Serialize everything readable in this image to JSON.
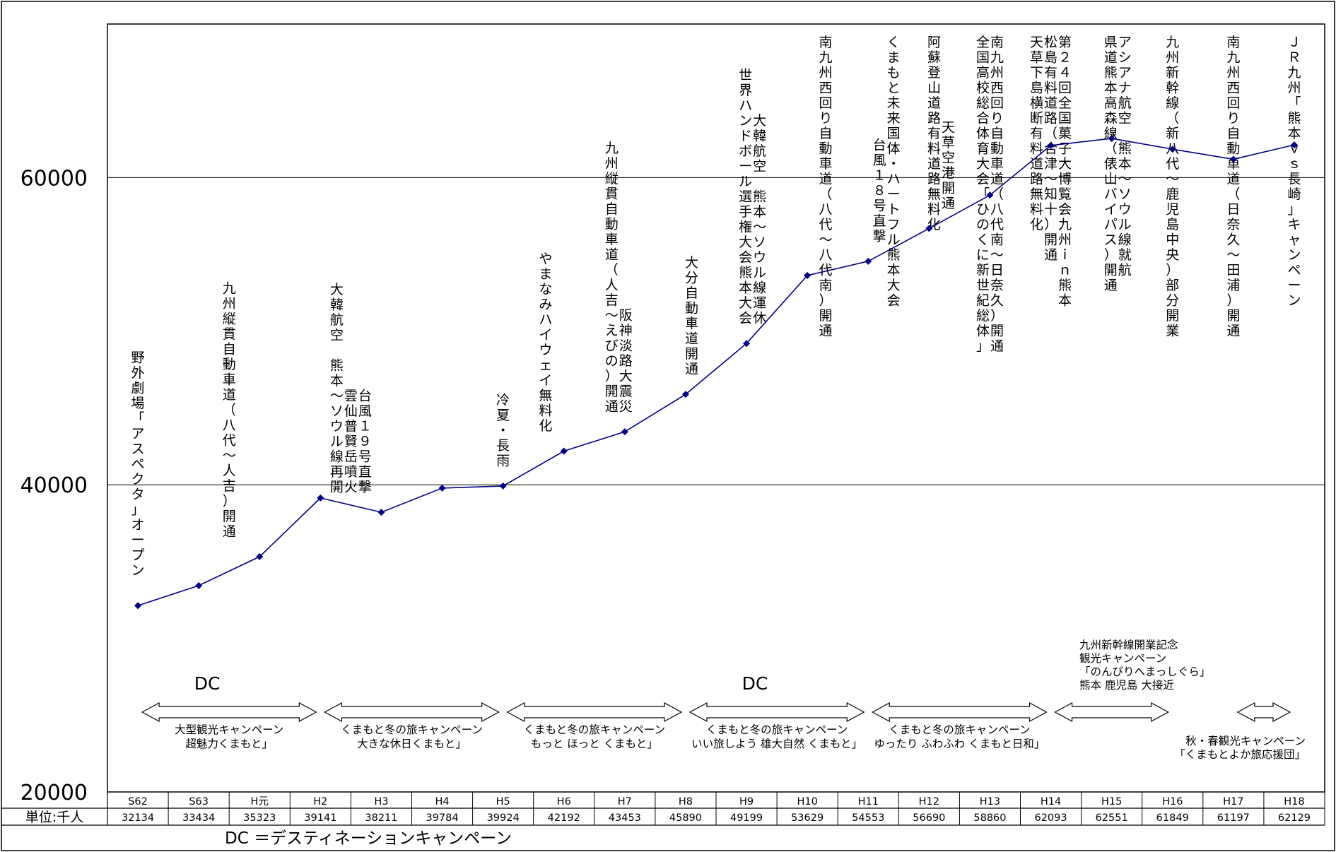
{
  "chart_data": {
    "type": "line",
    "unit_label": "単位:千人",
    "categories": [
      "S62",
      "S63",
      "H元",
      "H2",
      "H3",
      "H4",
      "H5",
      "H6",
      "H7",
      "H8",
      "H9",
      "H10",
      "H11",
      "H12",
      "H13",
      "H14",
      "H15",
      "H16",
      "H17",
      "H18"
    ],
    "values": [
      32134,
      33434,
      35323,
      39141,
      38211,
      39784,
      39924,
      42192,
      43453,
      45890,
      49199,
      53629,
      54553,
      56690,
      58860,
      62093,
      62551,
      61849,
      61197,
      62129
    ],
    "value_labels": [
      "32134",
      "33434",
      "35323",
      "39141",
      "38211",
      "39784",
      "39924",
      "42192",
      "43453",
      "45890",
      "49199",
      "53629",
      "54553",
      "56690",
      "58860",
      "62093",
      "62551",
      "61849",
      "61197",
      "62129"
    ],
    "ylim": [
      20000,
      70000
    ],
    "yticks": [
      "60000",
      "40000",
      "20000"
    ],
    "series_color": "#00007f",
    "event_labels": [
      {
        "index": 0,
        "lines": [
          "野外劇場「アスペクタ」オープン"
        ]
      },
      {
        "index": 1.5,
        "lines": [
          "九州縦貫自動車道（八代～人吉）開通"
        ]
      },
      {
        "index": 3.5,
        "lines": [
          "台風１９号直撃",
          "雲仙普賢岳噴火",
          "大韓航空 熊本～ソウル線再開"
        ]
      },
      {
        "index": 6,
        "lines": [
          "冷夏・長雨"
        ]
      },
      {
        "index": 6.7,
        "lines": [
          "やまなみハイウェイ無料化"
        ]
      },
      {
        "index": 7.9,
        "lines": [
          "阪神淡路大震災",
          "九州縦貫自動車道（人吉～えびの）開通"
        ]
      },
      {
        "index": 9.1,
        "lines": [
          "大分自動車道開通"
        ]
      },
      {
        "index": 10.1,
        "lines": [
          "大韓航空 熊本～ソウル線運休",
          "世界ハンドボール選手権大会熊本大会"
        ]
      },
      {
        "index": 11.3,
        "lines": [
          "南九州西回り自動車道（八代～八代南）開通"
        ]
      },
      {
        "index": 12.3,
        "lines": [
          "くまもと未来国体・ハートフル熊本大会",
          "台風１８号直撃"
        ]
      },
      {
        "index": 13.2,
        "lines": [
          "天草空港開通",
          "阿蘇登山道路有料道路無料化"
        ]
      },
      {
        "index": 14,
        "lines": [
          "南九州西回り自動車道（八代南～日奈久）開通",
          "全国高校総合体育大会「ひのくに新世紀総体」"
        ]
      },
      {
        "index": 15,
        "lines": [
          "第２４回全国菓子大博覧会九州ｉｎ熊本",
          "松島有料道路（合津～知十）開通",
          "天草下島横断有料道路無料化"
        ]
      },
      {
        "index": 16.1,
        "lines": [
          "アシアナ航空 熊本～ソウル線就航",
          "県道熊本高森線（俵山バイパス）開通"
        ]
      },
      {
        "index": 17,
        "lines": [
          "九州新幹線（新八代～鹿児島中央）部分開業"
        ]
      },
      {
        "index": 18,
        "lines": [
          "南九州西回り自動車道（日奈久～田浦）開通"
        ]
      },
      {
        "index": 19,
        "lines": [
          "ＪＲ九州「熊本ｖｓ長崎」キャンペーン"
        ]
      }
    ],
    "campaigns": [
      {
        "from": 0.5,
        "to": 3.5,
        "line1": "大型観光キャンペーン",
        "line2": "超魅力くまもと」",
        "dc_label": "DC"
      },
      {
        "from": 3.5,
        "to": 6.5,
        "line1": "くまもと冬の旅キャンペーン",
        "line2": "大きな休日くまもと」",
        "dc_label": ""
      },
      {
        "from": 6.5,
        "to": 9.5,
        "line1": "くまもと冬の旅キャンペーン",
        "line2": "もっと ほっと くまもと」",
        "dc_label": ""
      },
      {
        "from": 9.5,
        "to": 12.5,
        "line1": "くまもと冬の旅キャンペーン",
        "line2": "いい旅しよう 雄大自然 くまもと」",
        "dc_label": "DC"
      },
      {
        "from": 12.5,
        "to": 15.5,
        "line1": "くまもと冬の旅キャンペーン",
        "line2": "ゆったり ふわふわ くまもと日和」",
        "dc_label": ""
      },
      {
        "from": 15.5,
        "to": 17.5,
        "line1": "",
        "line2": "",
        "dc_label": ""
      },
      {
        "from": 18.5,
        "to": 19.5,
        "line1": "",
        "line2": "",
        "dc_label": ""
      }
    ],
    "campaign_notes": [
      {
        "id": "h15",
        "lines": [
          "九州新幹線開業記念",
          "観光キャンペーン",
          "「のんびりへまっしぐら」",
          "熊本 鹿児島 大接近"
        ]
      },
      {
        "id": "h17",
        "lines": [
          "秋・春観光キャンペーン",
          "「くまもとよか旅応援団」"
        ]
      }
    ],
    "legend": "DC ＝デスティネーションキャンペーン"
  }
}
